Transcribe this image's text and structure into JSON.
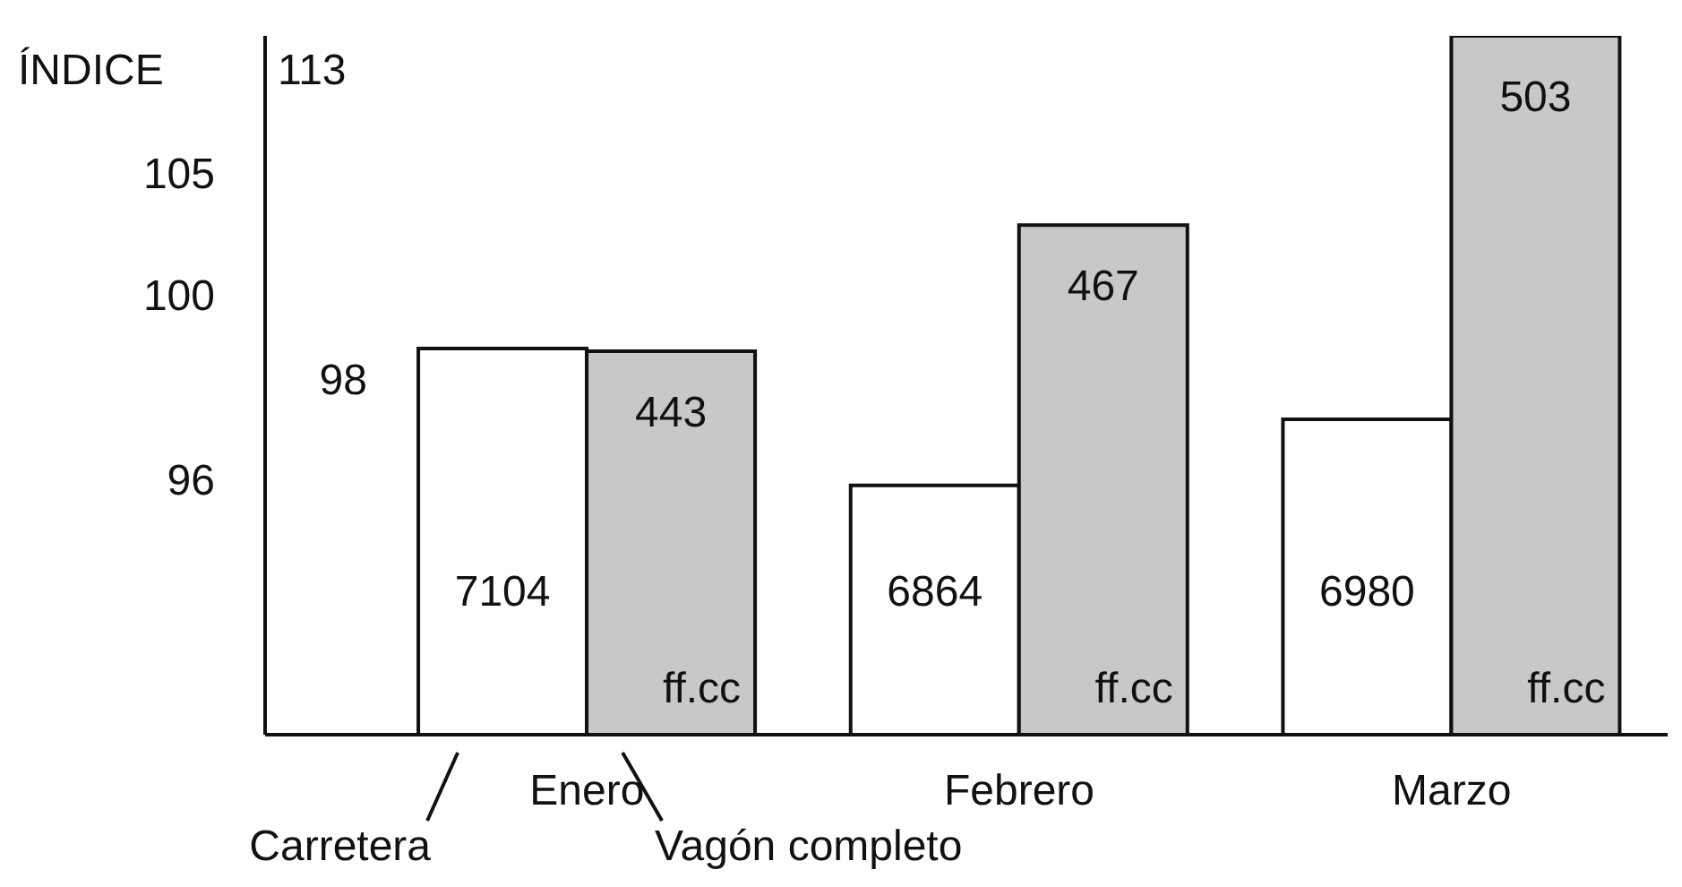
{
  "chart_data": {
    "type": "bar",
    "ylabel": "ÍNDICE",
    "categories": [
      "Enero",
      "Febrero",
      "Marzo"
    ],
    "legend": "bottom",
    "data_labels": true,
    "tick_labels": "x",
    "ylim": [
      6427,
      7652
    ],
    "y2lim": [
      370,
      503
    ],
    "series": [
      {
        "name": "Carretera",
        "color": "#ffffff",
        "values": [
          7104,
          6864,
          6980
        ]
      },
      {
        "name": "Vagón completo",
        "color": "#c8c8c8",
        "values": [
          443,
          467,
          503
        ],
        "axis": "y2"
      }
    ],
    "annotations": [
      "113",
      "105",
      "100",
      "96",
      "98",
      {
        "text": "ff.cc",
        "x": "Enero"
      },
      {
        "text": "ff.cc",
        "x": "Febrero"
      },
      {
        "text": "ff.cc",
        "x": "Marzo"
      }
    ]
  }
}
